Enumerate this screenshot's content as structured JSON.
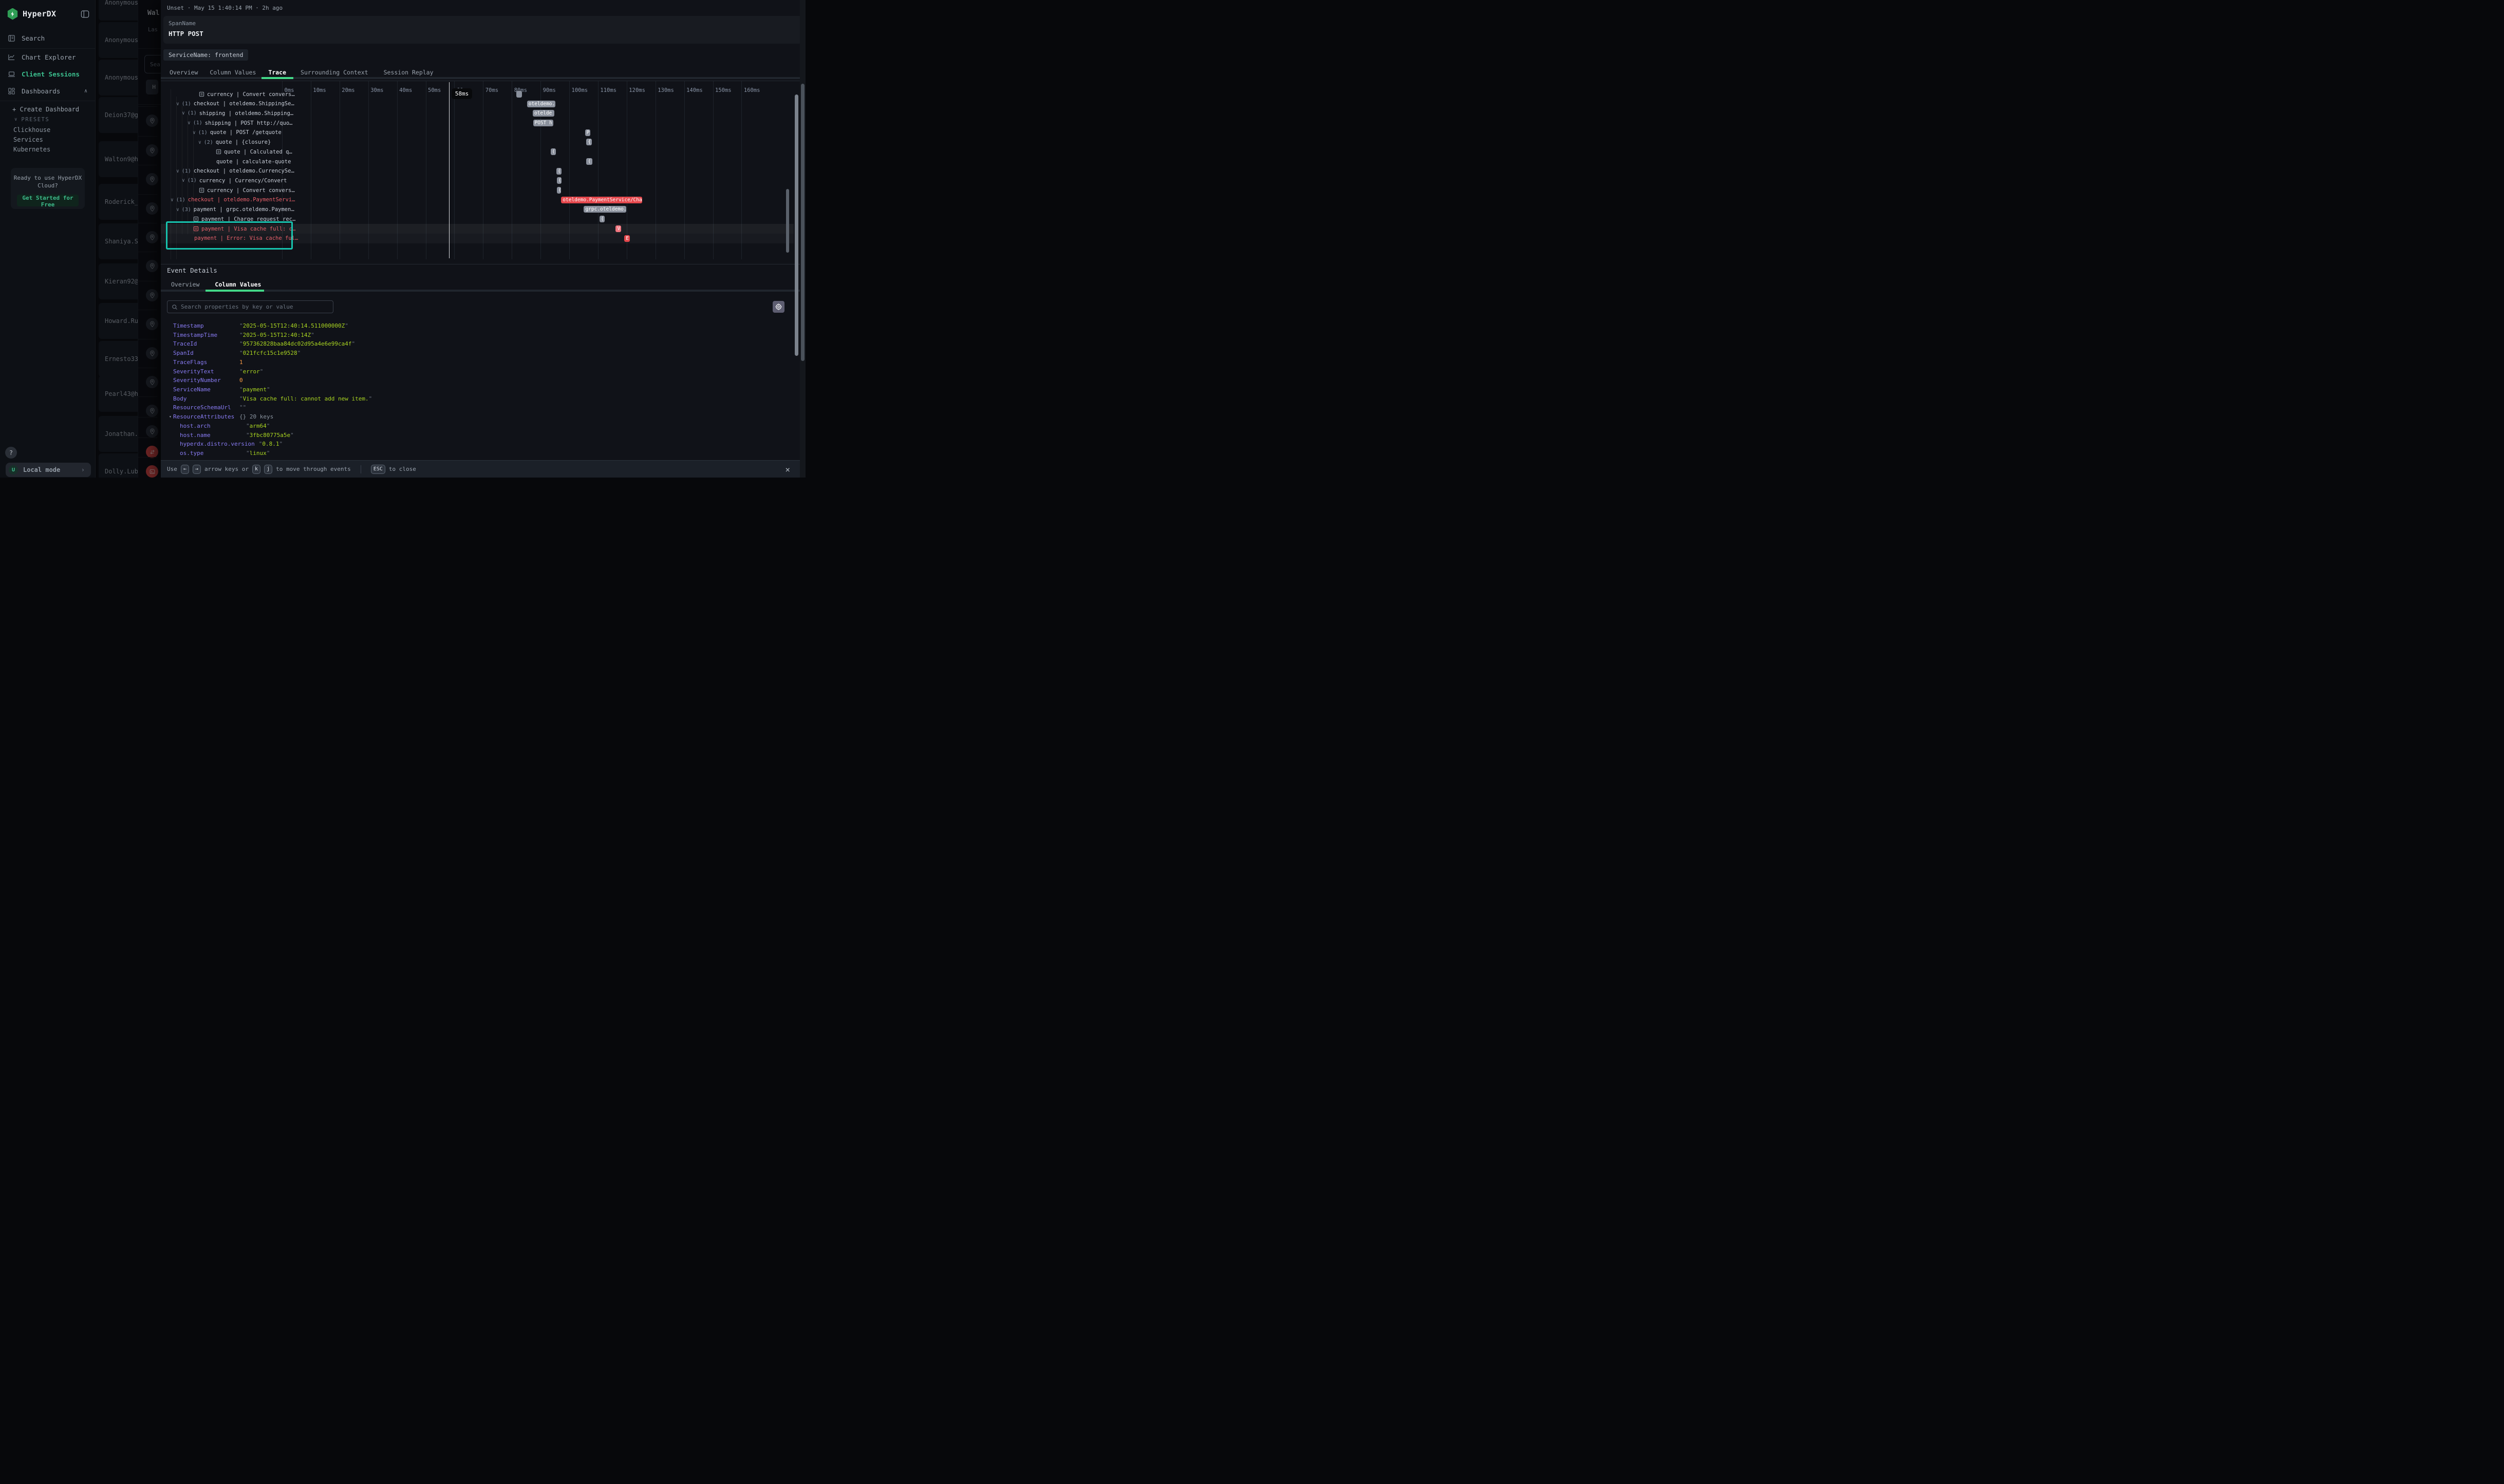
{
  "sidebar": {
    "brand": "HyperDX",
    "nav": [
      {
        "label": "Search",
        "icon": "journal-icon",
        "active": false
      },
      {
        "label": "Chart Explorer",
        "icon": "chart-icon",
        "active": false
      },
      {
        "label": "Client Sessions",
        "icon": "laptop-icon",
        "active": true
      },
      {
        "label": "Dashboards",
        "icon": "dashboard-icon",
        "active": false
      }
    ],
    "create_dashboard": "+ Create Dashboard",
    "presets_label": "PRESETS",
    "presets": [
      "Clickhouse",
      "Services",
      "Kubernetes"
    ],
    "cloud_card": {
      "line1": "Ready to use HyperDX",
      "line2": "Cloud?",
      "button": "Get Started for Free"
    },
    "help_label": "?",
    "user_initial": "U",
    "local_mode_label": "Local mode"
  },
  "session_list": {
    "items": [
      "Anonymous",
      "Anonymous",
      "Anonymous",
      "Deion37@gm",
      "Walton9@ho",
      "Roderick_S",
      "Shaniya.Sc",
      "Kieran92@h",
      "Howard.Rur",
      "Ernesto33@",
      "Pearl43@ho",
      "Jonathan.B",
      "Dolly.Lubo"
    ]
  },
  "session_panel": {
    "title_fragment": "Wal",
    "subtitle_fragment": "Las",
    "search_fragment": "Sea",
    "button_fragment": "H",
    "events": [
      "pin",
      "pin",
      "pin",
      "pin",
      "pin",
      "pin",
      "pin",
      "pin",
      "pin",
      "pin",
      "pin",
      "pin",
      "swap",
      "terminal"
    ]
  },
  "modal": {
    "meta": "Unset · May 15 1:40:14 PM · 2h ago",
    "span_name_label": "SpanName",
    "span_name": "HTTP POST",
    "service_badge": "ServiceName: frontend",
    "tabs": [
      {
        "label": "Overview",
        "active": false
      },
      {
        "label": "Column Values",
        "active": false
      },
      {
        "label": "Trace",
        "active": true
      },
      {
        "label": "Surrounding Context",
        "active": false
      },
      {
        "label": "Session Replay",
        "active": false
      }
    ],
    "footer": {
      "use": "Use",
      "left_key": "←",
      "right_key": "→",
      "mid": "arrow keys or",
      "k_key": "k",
      "j_key": "j",
      "tail": "to move through events",
      "esc_key": "ESC",
      "close": "to close"
    }
  },
  "trace": {
    "timeline_ticks": [
      "0ms",
      "10ms",
      "20ms",
      "30ms",
      "40ms",
      "50ms",
      "60ms",
      "70ms",
      "80ms",
      "90ms",
      "100ms",
      "110ms",
      "120ms",
      "130ms",
      "140ms",
      "150ms",
      "160ms"
    ],
    "cursor": {
      "label": "58ms",
      "ms": 58
    },
    "rows": [
      {
        "text": "currency | Convert convers…",
        "icon": "doc",
        "x": 62,
        "error": false,
        "highlight": false,
        "bar": {
          "start": 81.5,
          "end": 83.4,
          "color": "gray",
          "label": ""
        }
      },
      {
        "text": "checkout | oteldemo.ShippingSe…",
        "icon": "chevron",
        "count": "(1)",
        "x": 18,
        "error": false,
        "highlight": false,
        "bar": {
          "start": 85.2,
          "end": 95.0,
          "color": "gray",
          "label": "oteldemo."
        }
      },
      {
        "text": "shipping | oteldemo.Shipping…",
        "icon": "chevron",
        "count": "(1)",
        "x": 29,
        "error": false,
        "highlight": false,
        "bar": {
          "start": 87.2,
          "end": 94.8,
          "color": "gray",
          "label": "otelde"
        }
      },
      {
        "text": "shipping | POST http://quo…",
        "icon": "chevron",
        "count": "(1)",
        "x": 40,
        "error": false,
        "highlight": false,
        "bar": {
          "start": 87.3,
          "end": 94.3,
          "color": "gray",
          "label": "POST h"
        }
      },
      {
        "text": "quote | POST /getquote",
        "icon": "chevron",
        "count": "(1)",
        "x": 50,
        "error": false,
        "highlight": false,
        "bar": {
          "start": 105.4,
          "end": 107.3,
          "color": "gray",
          "label": "P"
        }
      },
      {
        "text": "quote | {closure}",
        "icon": "chevron",
        "count": "(2)",
        "x": 61,
        "error": false,
        "highlight": false,
        "bar": {
          "start": 105.9,
          "end": 107.7,
          "color": "gray",
          "label": "{"
        }
      },
      {
        "text": "quote | Calculated q…",
        "icon": "doc",
        "x": 95,
        "error": false,
        "highlight": false,
        "bar": {
          "start": 93.4,
          "end": 95.2,
          "color": "gray",
          "label": "("
        }
      },
      {
        "text": "quote | calculate-quote",
        "icon": "none",
        "x": 96,
        "error": false,
        "highlight": false,
        "bar": {
          "start": 105.9,
          "end": 107.9,
          "color": "gray",
          "label": "("
        }
      },
      {
        "text": "checkout | oteldemo.CurrencySe…",
        "icon": "chevron",
        "count": "(1)",
        "x": 18,
        "error": false,
        "highlight": false,
        "bar": {
          "start": 95.4,
          "end": 97.2,
          "color": "gray",
          "label": "("
        }
      },
      {
        "text": "currency | Currency/Convert",
        "icon": "chevron",
        "count": "(1)",
        "x": 29,
        "error": false,
        "highlight": false,
        "bar": {
          "start": 95.6,
          "end": 97.2,
          "color": "gray",
          "label": "("
        }
      },
      {
        "text": "currency | Convert convers…",
        "icon": "doc",
        "x": 62,
        "error": false,
        "highlight": false,
        "bar": {
          "start": 95.6,
          "end": 97.1,
          "color": "gray",
          "label": "("
        }
      },
      {
        "text": "checkout | oteldemo.PaymentServi…",
        "icon": "chevron",
        "count": "(1)",
        "x": 7,
        "error": true,
        "highlight": false,
        "bar": {
          "start": 97.1,
          "end": 125.4,
          "color": "red",
          "label": "oteldemo.PaymentService/Char"
        }
      },
      {
        "text": "payment | grpc.oteldemo.Paymen…",
        "icon": "chevron",
        "count": "(3)",
        "x": 18,
        "error": false,
        "highlight": false,
        "bar": {
          "start": 105.0,
          "end": 119.7,
          "color": "gray",
          "label": "grpc.oteldemo."
        }
      },
      {
        "text": "payment | Charge request rec…",
        "icon": "doc",
        "x": 51,
        "error": false,
        "highlight": false,
        "bar": {
          "start": 110.4,
          "end": 112.2,
          "color": "gray",
          "label": "("
        }
      },
      {
        "text": "payment | Visa cache full: c…",
        "icon": "doc",
        "x": 51,
        "error": true,
        "highlight": true,
        "bar": {
          "start": 116.1,
          "end": 118.0,
          "color": "salmon",
          "label": "V"
        }
      },
      {
        "text": "payment | Error: Visa cache ful…",
        "icon": "none",
        "x": 53,
        "error": true,
        "highlight": true,
        "bar": {
          "start": 119.1,
          "end": 121.0,
          "color": "red",
          "label": "E"
        }
      }
    ]
  },
  "event_details": {
    "title": "Event Details",
    "tabs": [
      {
        "label": "Overview",
        "active": false
      },
      {
        "label": "Column Values",
        "active": true
      }
    ],
    "search_placeholder": "Search properties by key or value",
    "properties": [
      {
        "key": "Timestamp",
        "value": "2025-05-15T12:40:14.511000000Z",
        "type": "string",
        "indent": 0
      },
      {
        "key": "TimestampTime",
        "value": "2025-05-15T12:40:14Z",
        "type": "string",
        "indent": 0
      },
      {
        "key": "TraceId",
        "value": "957362828baa84dc02d95a4e6e99ca4f",
        "type": "string",
        "indent": 0
      },
      {
        "key": "SpanId",
        "value": "021fcfc15c1e9528",
        "type": "string",
        "indent": 0
      },
      {
        "key": "TraceFlags",
        "value": "1",
        "type": "number",
        "indent": 0
      },
      {
        "key": "SeverityText",
        "value": "error",
        "type": "string",
        "indent": 0
      },
      {
        "key": "SeverityNumber",
        "value": "0",
        "type": "number",
        "indent": 0
      },
      {
        "key": "ServiceName",
        "value": "payment",
        "type": "string",
        "indent": 0
      },
      {
        "key": "Body",
        "value": "Visa cache full: cannot add new item.",
        "type": "string",
        "indent": 0
      },
      {
        "key": "ResourceSchemaUrl",
        "value": "",
        "type": "string",
        "indent": 0
      },
      {
        "key": "ResourceAttributes",
        "value": "{} 20 keys",
        "type": "object",
        "indent": 0,
        "caret": true
      },
      {
        "key": "host.arch",
        "value": "arm64",
        "type": "string",
        "indent": 1
      },
      {
        "key": "host.name",
        "value": "3fbc80775a5e",
        "type": "string",
        "indent": 1
      },
      {
        "key": "hyperdx.distro.version",
        "value": "0.8.1",
        "type": "string",
        "indent": 1
      },
      {
        "key": "os.type",
        "value": "linux",
        "type": "string",
        "indent": 1
      }
    ]
  }
}
